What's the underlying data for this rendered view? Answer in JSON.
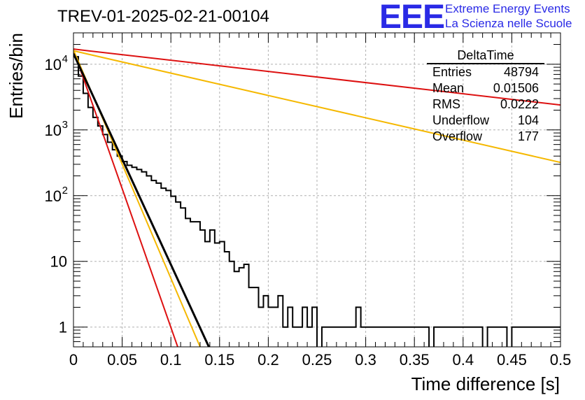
{
  "title": "TREV-01-2025-02-21-00104",
  "logo": {
    "mark": "EEE",
    "line1": "Extreme Energy Events",
    "line2": "La Scienza nelle Scuole",
    "color": "#2a2ae6"
  },
  "stats": {
    "name": "DeltaTime",
    "rows": [
      {
        "label": "Entries",
        "value": "48794"
      },
      {
        "label": "Mean",
        "value": "0.01506"
      },
      {
        "label": "RMS",
        "value": "0.0222"
      },
      {
        "label": "Underflow",
        "value": "104"
      },
      {
        "label": "Overflow",
        "value": "177"
      }
    ]
  },
  "chart_data": {
    "type": "line",
    "xlabel": "Time difference [s]",
    "ylabel": "Entries/bin",
    "xlim": [
      0,
      0.5
    ],
    "ylim": [
      0.5,
      30000
    ],
    "yscale": "log",
    "grid": true,
    "xticks": [
      {
        "v": 0,
        "label": "0"
      },
      {
        "v": 0.05,
        "label": "0.05"
      },
      {
        "v": 0.1,
        "label": "0.1"
      },
      {
        "v": 0.15,
        "label": "0.15"
      },
      {
        "v": 0.2,
        "label": "0.2"
      },
      {
        "v": 0.25,
        "label": "0.25"
      },
      {
        "v": 0.3,
        "label": "0.3"
      },
      {
        "v": 0.35,
        "label": "0.35"
      },
      {
        "v": 0.4,
        "label": "0.4"
      },
      {
        "v": 0.45,
        "label": "0.45"
      },
      {
        "v": 0.5,
        "label": "0.5"
      }
    ],
    "yticks": [
      {
        "v": 1,
        "label": "1"
      },
      {
        "v": 10,
        "label": "10"
      },
      {
        "v": 100,
        "label": "10",
        "exp": "2"
      },
      {
        "v": 1000,
        "label": "10",
        "exp": "3"
      },
      {
        "v": 10000,
        "label": "10",
        "exp": "4"
      }
    ],
    "histogram": {
      "bin_width": 0.005,
      "counts": [
        13000,
        6600,
        3600,
        2200,
        1550,
        1150,
        850,
        650,
        500,
        400,
        330,
        290,
        270,
        250,
        230,
        200,
        170,
        155,
        130,
        120,
        98,
        80,
        65,
        45,
        40,
        40,
        30,
        20,
        30,
        19,
        20,
        14,
        10,
        7,
        8,
        9,
        4,
        4,
        2,
        3,
        2,
        2,
        3,
        1,
        2,
        1,
        1,
        2,
        1,
        2,
        0,
        1,
        1,
        1,
        1,
        1,
        1,
        1,
        2,
        1,
        1,
        1,
        1,
        1,
        1,
        1,
        1,
        1,
        1,
        1,
        1,
        1,
        1,
        0,
        1,
        1,
        1,
        1,
        1,
        1,
        1,
        1,
        1,
        1,
        0,
        1,
        1,
        1,
        1,
        0,
        1,
        1,
        1,
        1,
        1,
        1,
        1,
        1,
        1,
        1
      ],
      "color": "#000000"
    },
    "series": [
      {
        "points": [
          [
            0,
            16500
          ],
          [
            0.107,
            0.5
          ]
        ],
        "color": "#dd1111"
      },
      {
        "points": [
          [
            0,
            16500
          ],
          [
            0.13,
            0.5
          ]
        ],
        "color": "#f5b800"
      },
      {
        "points": [
          [
            0,
            14500
          ],
          [
            0.139,
            0.5
          ]
        ],
        "color": "#000000"
      },
      {
        "points": [
          [
            0,
            17000
          ],
          [
            0.5,
            2400
          ]
        ],
        "color": "#dd1111"
      },
      {
        "points": [
          [
            0,
            16000
          ],
          [
            0.5,
            320
          ]
        ],
        "color": "#f5b800"
      }
    ]
  }
}
